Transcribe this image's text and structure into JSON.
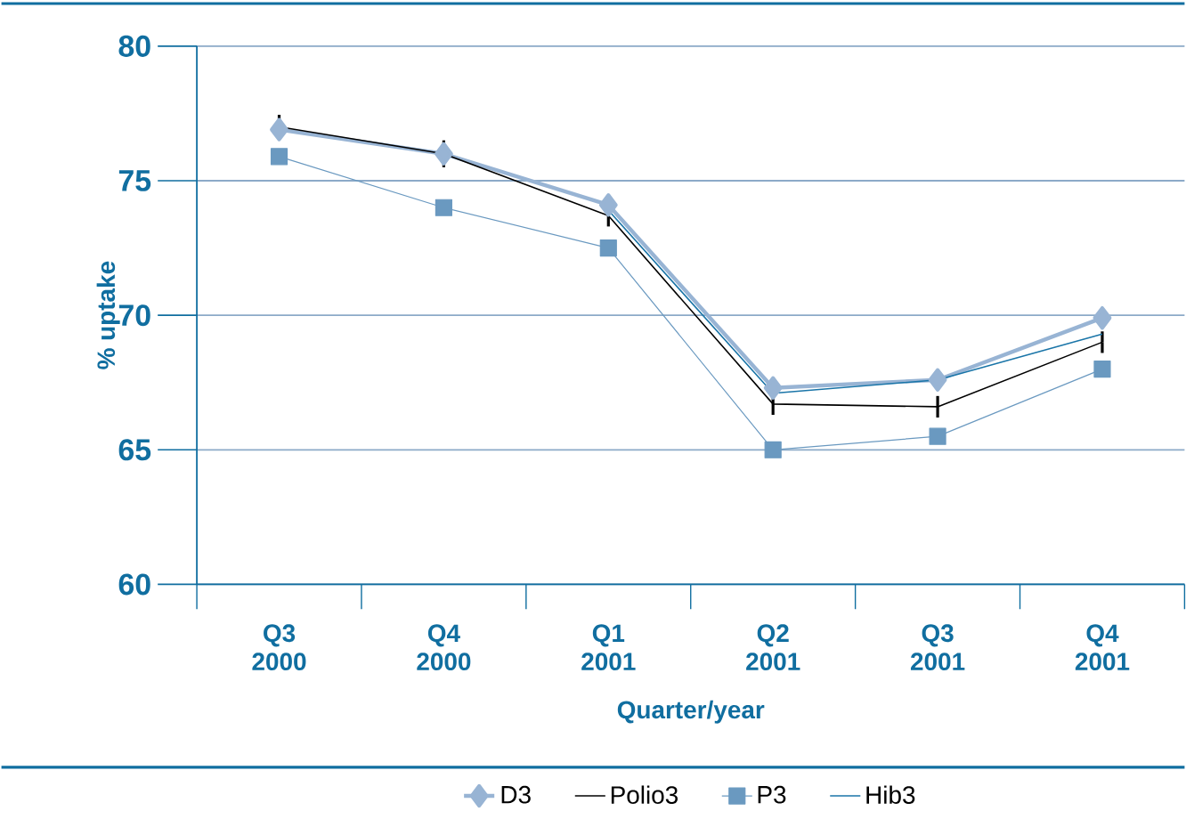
{
  "chart_data": {
    "type": "line",
    "xlabel": "Quarter/year",
    "ylabel": "% uptake",
    "categories": [
      "Q3 2000",
      "Q4 2000",
      "Q1 2001",
      "Q2 2001",
      "Q3 2001",
      "Q4 2001"
    ],
    "series": [
      {
        "name": "D3",
        "color": "#98b4d4",
        "marker": "diamond",
        "values": [
          76.9,
          76.0,
          74.1,
          67.3,
          67.6,
          69.9
        ]
      },
      {
        "name": "Polio3",
        "color": "#000000",
        "marker": "none",
        "values": [
          77.0,
          76.0,
          73.7,
          66.7,
          66.6,
          69.0
        ],
        "errors": [
          0.45,
          0.5,
          0.4,
          0.4,
          0.4,
          0.4
        ]
      },
      {
        "name": "P3",
        "color": "#6a99c0",
        "marker": "square",
        "values": [
          75.9,
          74.0,
          72.5,
          65.0,
          65.5,
          68.0
        ]
      },
      {
        "name": "Hib3",
        "color": "#1a75a8",
        "marker": "none",
        "values": [
          null,
          null,
          73.9,
          67.1,
          67.6,
          69.3
        ]
      }
    ],
    "ylim": [
      60,
      80
    ],
    "yticks": [
      60,
      65,
      70,
      75,
      80
    ],
    "grid": "y",
    "legend": "bottom"
  }
}
